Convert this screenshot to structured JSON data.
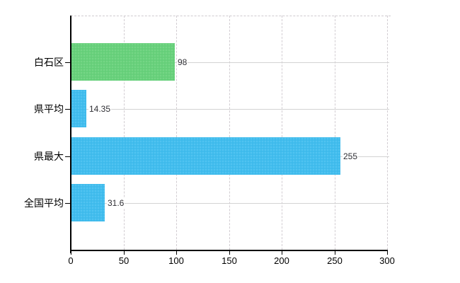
{
  "chart_data": {
    "type": "bar",
    "orientation": "horizontal",
    "title": "",
    "xlabel": "",
    "ylabel": "",
    "categories": [
      "白石区",
      "県平均",
      "県最大",
      "全国平均"
    ],
    "values": [
      98,
      14.35,
      255,
      31.6
    ],
    "value_labels": [
      "98",
      "14.35",
      "255",
      "31.6"
    ],
    "bar_colors": [
      "#68d17b",
      "#41bdee",
      "#41bdee",
      "#41bdee"
    ],
    "xlim": [
      0,
      300
    ],
    "xticks": [
      0,
      50,
      100,
      150,
      200,
      250,
      300
    ],
    "legend": "none",
    "grid": {
      "vertical": "dashed light gray",
      "horizontal": "solid light gray at each category",
      "top_border": "dashed light gray"
    }
  },
  "colors": {
    "background": "#ffffff",
    "axis": "#000000",
    "grid_vertical": "#d2cdd2",
    "grid_horizontal": "#d3d3d3",
    "category_text": "#000000",
    "value_text": "#2f2f34",
    "tick_text": "#000000",
    "bar_green": "#68d17b",
    "bar_blue": "#41bdee"
  }
}
